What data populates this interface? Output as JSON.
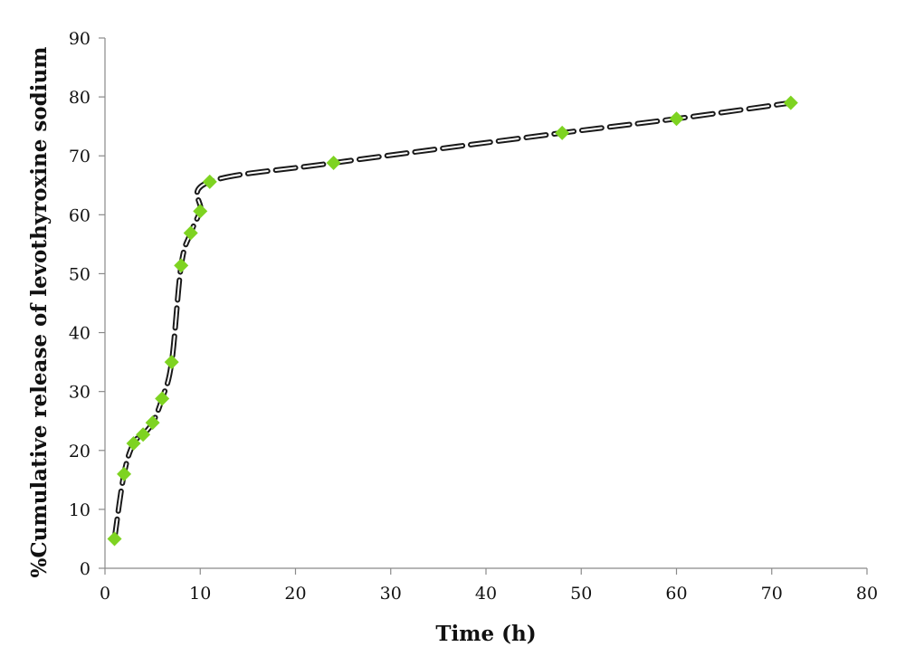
{
  "chart_data": {
    "type": "line",
    "title": "",
    "xlabel": "Time (h)",
    "ylabel": "%Cumulative release of levothyroxine sodium",
    "xlim": [
      0,
      80
    ],
    "ylim": [
      0,
      90
    ],
    "xticks": [
      0,
      10,
      20,
      30,
      40,
      50,
      60,
      70,
      80
    ],
    "yticks": [
      0,
      10,
      20,
      30,
      40,
      50,
      60,
      70,
      80,
      90
    ],
    "grid": false,
    "legend": "none",
    "series": [
      {
        "line_style": "dashed",
        "line_color": "#1a1a1a",
        "marker": "diamond",
        "marker_color": "#7ed321",
        "x": [
          1,
          2,
          3,
          4,
          5,
          6,
          7,
          8,
          9,
          10,
          11,
          24,
          48,
          60,
          72
        ],
        "y": [
          5,
          16,
          21.2,
          22.7,
          24.7,
          28.8,
          35,
          51.4,
          56.9,
          60.6,
          65.6,
          68.8,
          73.9,
          76.3,
          79
        ]
      }
    ]
  }
}
